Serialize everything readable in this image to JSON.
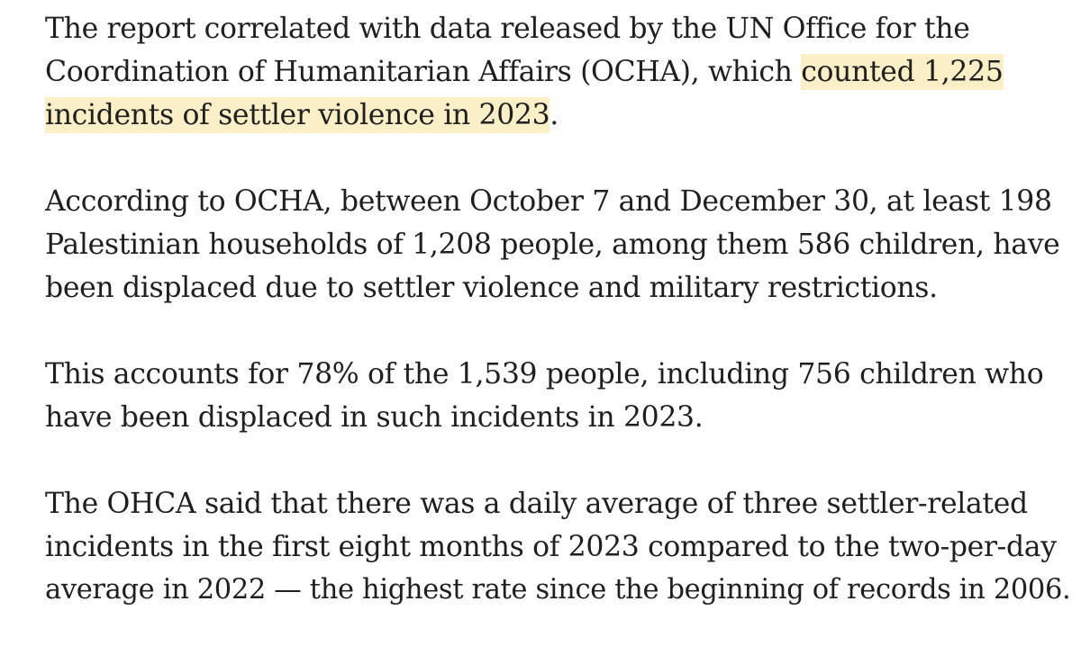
{
  "article": {
    "paragraphs": [
      {
        "lines": [
          {
            "text": "The report correlated with data released by the UN Office for the"
          },
          {
            "before": "Coordination of Humanitarian Affairs (OCHA), which ",
            "highlight": "counted 1,225"
          },
          {
            "highlight": "incidents of settler violence in 2023",
            "after": "."
          }
        ]
      },
      {
        "lines": [
          {
            "text": "According to OCHA, between October 7 and December 30, at least 198"
          },
          {
            "text": "Palestinian households of 1,208 people, among them 586 children, have"
          },
          {
            "text": "been displaced due to settler violence and military restrictions."
          }
        ]
      },
      {
        "lines": [
          {
            "text": "This accounts for 78% of the 1,539 people, including 756 children who"
          },
          {
            "text": "have been displaced in such incidents in 2023."
          }
        ]
      },
      {
        "lines": [
          {
            "text": "The OHCA said that there was a daily average of three settler-related"
          },
          {
            "text": "incidents in the first eight months of 2023 compared to the two-per-day"
          },
          {
            "text": "average in 2022 — the highest rate since the beginning of records in 2006."
          }
        ]
      }
    ],
    "highlight_color": "#fbefc7",
    "text_color": "#1f1f1f"
  }
}
